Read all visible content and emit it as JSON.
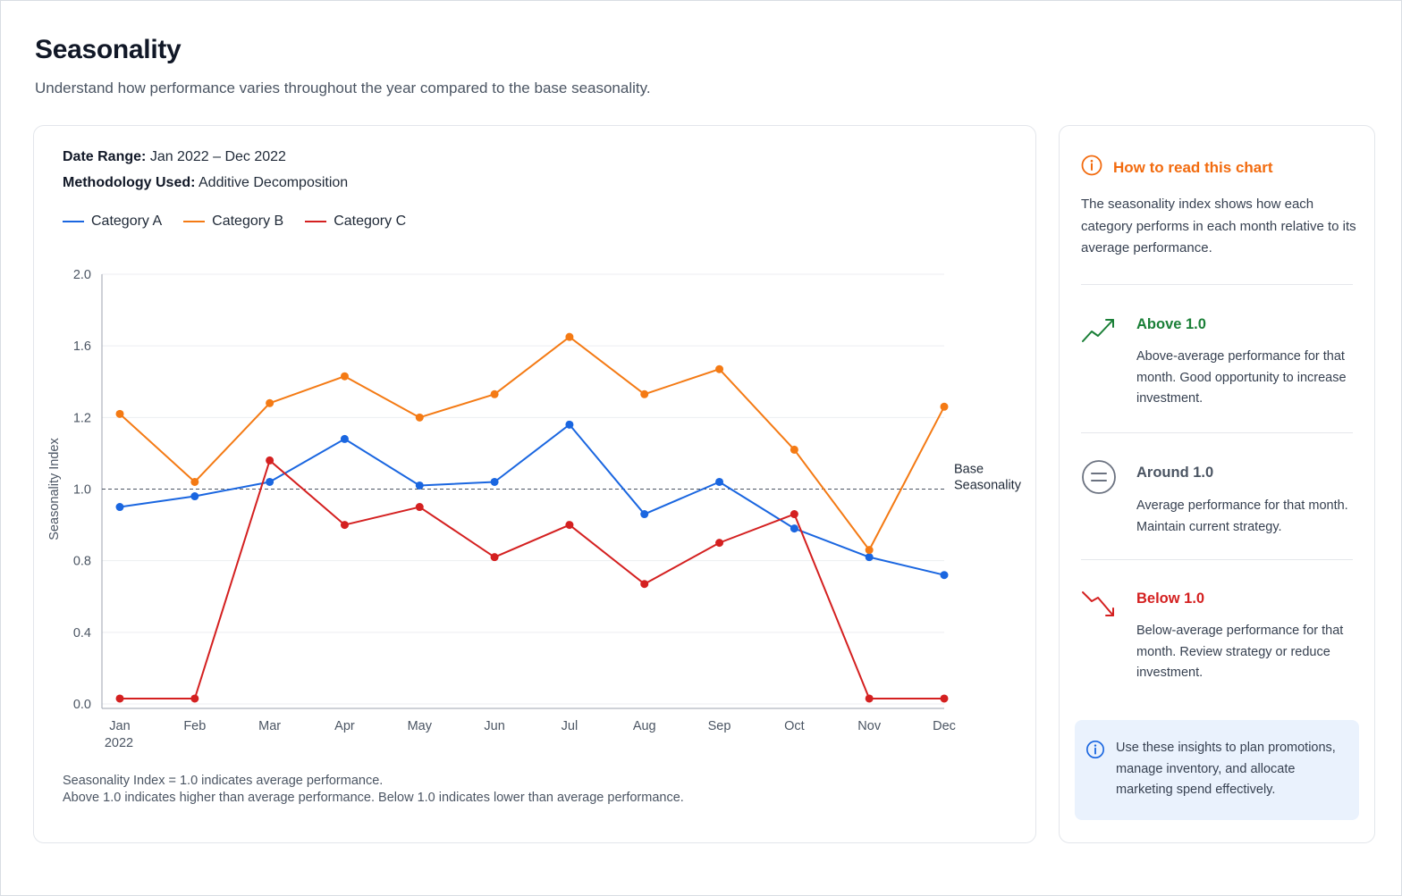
{
  "page": {
    "title": "Seasonality",
    "subtitle": "Understand how performance varies throughout the year compared to the base seasonality."
  },
  "chart_card": {
    "date_range_label": "Date Range:",
    "date_range_value": "Jan 2022 – Dec 2022",
    "methodology_label": "Methodology Used:",
    "methodology_value": "Additive Decomposition",
    "footnote_1": "Seasonality Index = 1.0 indicates average performance.",
    "footnote_2": "Above 1.0 indicates higher than average performance. Below 1.0 indicates lower than average performance."
  },
  "chart_data": {
    "type": "line",
    "categories": [
      "Jan",
      "Feb",
      "Mar",
      "Apr",
      "May",
      "Jun",
      "Jul",
      "Aug",
      "Sep",
      "Oct",
      "Nov",
      "Dec"
    ],
    "first_category_sublabel": "2022",
    "ylabel": "Seasonality Index",
    "yticks": [
      "0.0",
      "0.4",
      "0.8",
      "1.0",
      "1.2",
      "1.6",
      "2.0"
    ],
    "grid": true,
    "legend_position": "top-left",
    "reference_line": {
      "label_line1": "Base",
      "label_line2": "Seasonality",
      "style": "dashed"
    },
    "series": [
      {
        "name": "Category A",
        "color": "#1a66e0",
        "values": [
          0.95,
          0.98,
          1.02,
          1.14,
          1.01,
          1.02,
          1.18,
          0.93,
          1.02,
          0.89,
          0.81,
          0.72
        ]
      },
      {
        "name": "Category B",
        "color": "#f47a14",
        "values": [
          1.22,
          1.02,
          1.28,
          1.43,
          1.2,
          1.33,
          1.65,
          1.33,
          1.47,
          1.11,
          0.83,
          1.26
        ]
      },
      {
        "name": "Category C",
        "color": "#d42020",
        "values": [
          0.03,
          0.03,
          1.08,
          0.9,
          0.95,
          0.81,
          0.9,
          0.67,
          0.85,
          0.93,
          0.03,
          0.03
        ]
      }
    ]
  },
  "side_panel": {
    "title": "How to read this chart",
    "intro": "The seasonality index shows how each category performs in each month relative to its average performance.",
    "above": {
      "title": "Above 1.0",
      "text": "Above-average performance for that month. Good opportunity to increase investment.",
      "color": "#1a7f37"
    },
    "around": {
      "title": "Around 1.0",
      "text": "Average performance for that month. Maintain current strategy.",
      "color": "#4b5563"
    },
    "below": {
      "title": "Below 1.0",
      "text": "Below-average performance for that month. Review strategy or reduce investment.",
      "color": "#d42020"
    },
    "tip": "Use these insights to plan promotions, manage inventory, and allocate marketing spend effectively."
  }
}
